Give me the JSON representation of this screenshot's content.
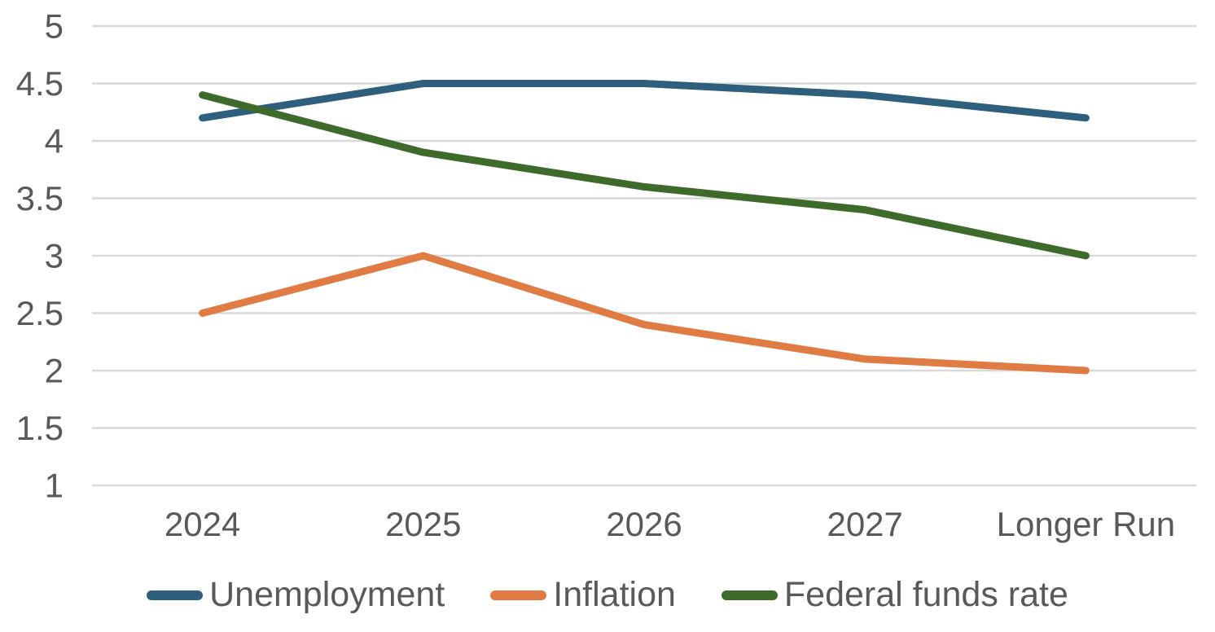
{
  "chart_data": {
    "type": "line",
    "title": "",
    "xlabel": "",
    "ylabel": "",
    "categories": [
      "2024",
      "2025",
      "2026",
      "2027",
      "Longer Run"
    ],
    "series": [
      {
        "name": "Unemployment",
        "color": "#2E5F7C",
        "values": [
          4.2,
          4.5,
          4.5,
          4.4,
          4.2
        ]
      },
      {
        "name": "Inflation",
        "color": "#E07B43",
        "values": [
          2.5,
          3.0,
          2.4,
          2.1,
          2.0
        ]
      },
      {
        "name": "Federal funds rate",
        "color": "#3E6B2B",
        "values": [
          4.4,
          3.9,
          3.6,
          3.4,
          3.0
        ]
      }
    ],
    "ylim": [
      1,
      5
    ],
    "yticks": [
      5,
      4.5,
      4,
      3.5,
      3,
      2.5,
      2,
      1.5,
      1
    ],
    "grid": true,
    "gridline_color": "#D9D9D9",
    "text_color": "#595959",
    "legend_position": "bottom"
  }
}
